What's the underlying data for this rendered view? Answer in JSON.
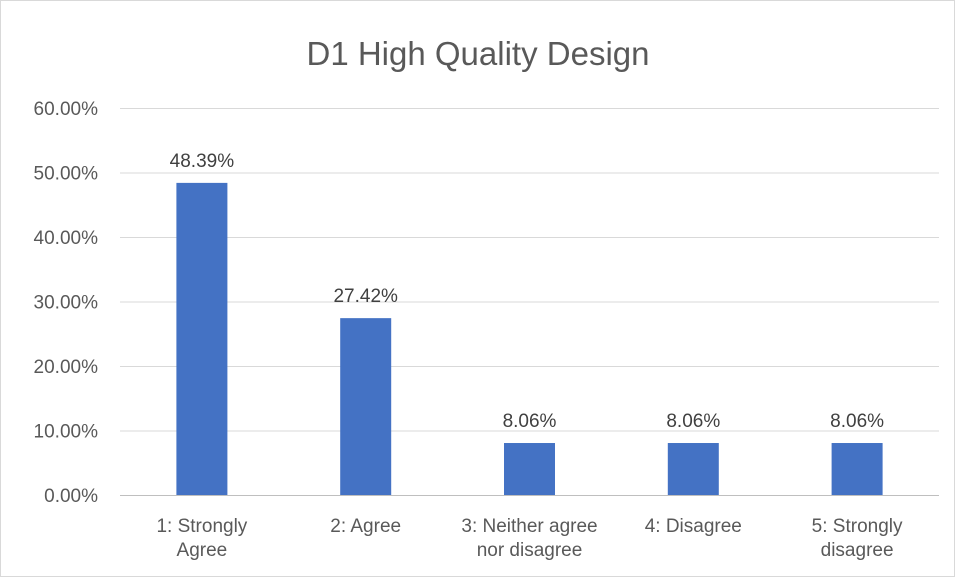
{
  "chart_data": {
    "type": "bar",
    "title": "D1 High Quality Design",
    "xlabel": "",
    "ylabel": "",
    "categories": [
      [
        "1: Strongly",
        "Agree"
      ],
      [
        "2: Agree"
      ],
      [
        "3: Neither agree",
        "nor disagree"
      ],
      [
        "4: Disagree"
      ],
      [
        "5: Strongly",
        "disagree"
      ]
    ],
    "values": [
      48.39,
      27.42,
      8.06,
      8.06,
      8.06
    ],
    "data_labels": [
      "48.39%",
      "27.42%",
      "8.06%",
      "8.06%",
      "8.06%"
    ],
    "ylim": [
      0,
      60
    ],
    "yticks": [
      0,
      10,
      20,
      30,
      40,
      50,
      60
    ],
    "ytick_labels": [
      "0.00%",
      "10.00%",
      "20.00%",
      "30.00%",
      "40.00%",
      "50.00%",
      "60.00%"
    ],
    "grid": true,
    "legend": "none",
    "bar_color": "#4472c4"
  }
}
